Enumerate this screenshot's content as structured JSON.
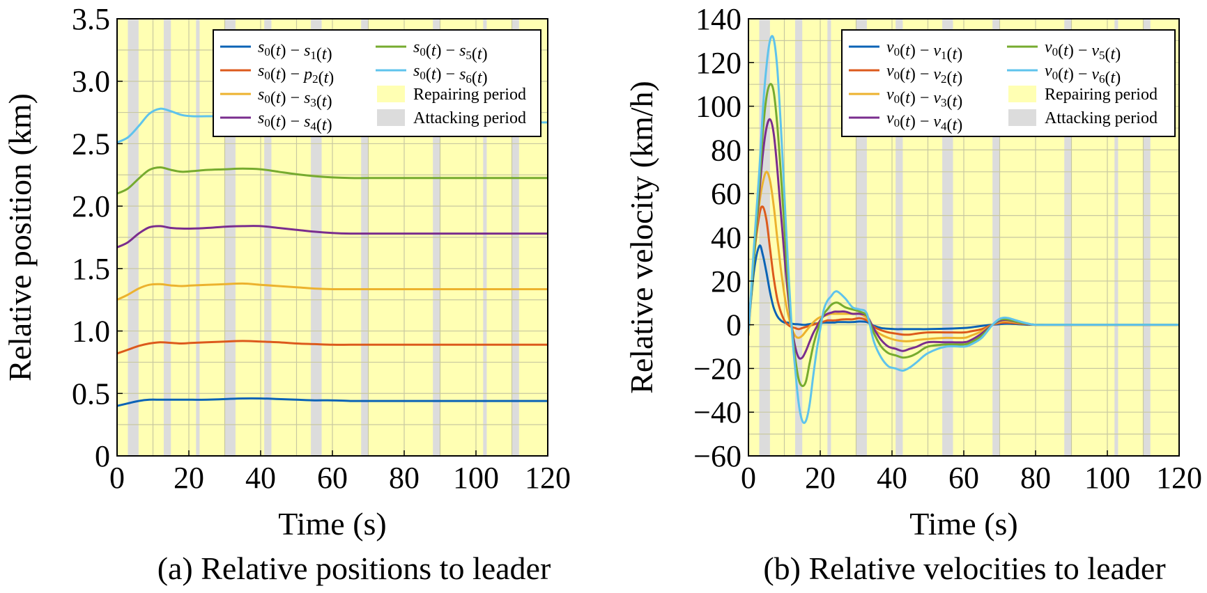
{
  "colors": {
    "repair": "#ffffb3",
    "attack": "#dcdcdc",
    "grid": "#c8c8a0",
    "s1": "#0b63b6",
    "s2": "#dc5a1c",
    "s3": "#ecb22e",
    "s4": "#7a2d8e",
    "s5": "#76ab2f",
    "s6": "#5fc3ec"
  },
  "chart_data": [
    {
      "type": "line",
      "caption": "(a) Relative positions to leader",
      "xlabel": "Time (s)",
      "ylabel": "Relative position (km)",
      "xlim": [
        0,
        120
      ],
      "ylim": [
        0,
        3.5
      ],
      "xticks": [
        0,
        20,
        40,
        60,
        80,
        100,
        120
      ],
      "yticks": [
        0,
        0.5,
        1.0,
        1.5,
        2.0,
        2.5,
        3.0,
        3.5
      ],
      "ytick_labels": [
        "0",
        "0.5",
        "1.0",
        "1.5",
        "2.0",
        "2.5",
        "3.0",
        "3.5"
      ],
      "grid": true,
      "legend_position": "top-right",
      "background": "Repairing period",
      "attack_intervals": [
        [
          3,
          6
        ],
        [
          13,
          15
        ],
        [
          22,
          23
        ],
        [
          30,
          33
        ],
        [
          41,
          43
        ],
        [
          54,
          57
        ],
        [
          68,
          70
        ],
        [
          88,
          90
        ],
        [
          102,
          103
        ],
        [
          110,
          112
        ]
      ],
      "legend": [
        {
          "key": "s1",
          "text": "s0(t) − s1(t)"
        },
        {
          "key": "s2",
          "text": "s0(t) − p2(t)"
        },
        {
          "key": "s3",
          "text": "s0(t) − s3(t)"
        },
        {
          "key": "s4",
          "text": "s0(t) − s4(t)"
        },
        {
          "key": "s5",
          "text": "s0(t) − s5(t)"
        },
        {
          "key": "s6",
          "text": "s0(t) − s6(t)"
        },
        {
          "key": "repair",
          "text": "Repairing period"
        },
        {
          "key": "attack",
          "text": "Attacking period"
        }
      ],
      "x": [
        0,
        3,
        6,
        9,
        12,
        15,
        18,
        21,
        25,
        30,
        35,
        40,
        45,
        50,
        55,
        60,
        65,
        70,
        80,
        90,
        100,
        110,
        120
      ],
      "series": [
        {
          "key": "s1",
          "name": "s0(t) − s1(t)",
          "values": [
            0.4,
            0.42,
            0.44,
            0.45,
            0.45,
            0.45,
            0.45,
            0.45,
            0.45,
            0.455,
            0.46,
            0.46,
            0.455,
            0.45,
            0.445,
            0.445,
            0.44,
            0.44,
            0.44,
            0.44,
            0.44,
            0.44,
            0.44
          ]
        },
        {
          "key": "s2",
          "name": "s0(t) − p2(t)",
          "values": [
            0.82,
            0.85,
            0.88,
            0.9,
            0.91,
            0.905,
            0.9,
            0.905,
            0.91,
            0.915,
            0.92,
            0.915,
            0.91,
            0.9,
            0.895,
            0.89,
            0.89,
            0.89,
            0.89,
            0.89,
            0.89,
            0.89,
            0.89
          ]
        },
        {
          "key": "s3",
          "name": "s0(t) − s3(t)",
          "values": [
            1.25,
            1.29,
            1.34,
            1.37,
            1.375,
            1.365,
            1.36,
            1.365,
            1.37,
            1.375,
            1.38,
            1.37,
            1.36,
            1.35,
            1.34,
            1.335,
            1.335,
            1.335,
            1.335,
            1.335,
            1.335,
            1.335,
            1.335
          ]
        },
        {
          "key": "s4",
          "name": "s0(t) − s4(t)",
          "values": [
            1.67,
            1.71,
            1.78,
            1.83,
            1.84,
            1.825,
            1.82,
            1.82,
            1.825,
            1.835,
            1.84,
            1.84,
            1.825,
            1.81,
            1.795,
            1.785,
            1.78,
            1.78,
            1.78,
            1.78,
            1.78,
            1.78,
            1.78
          ]
        },
        {
          "key": "s5",
          "name": "s0(t) − s5(t)",
          "values": [
            2.1,
            2.14,
            2.22,
            2.29,
            2.31,
            2.29,
            2.275,
            2.28,
            2.29,
            2.295,
            2.3,
            2.295,
            2.275,
            2.255,
            2.24,
            2.23,
            2.225,
            2.225,
            2.225,
            2.225,
            2.225,
            2.225,
            2.225
          ]
        },
        {
          "key": "s6",
          "name": "s0(t) − s6(t)",
          "values": [
            2.51,
            2.55,
            2.64,
            2.74,
            2.78,
            2.76,
            2.73,
            2.72,
            2.72,
            2.72,
            2.72,
            2.72,
            2.7,
            2.69,
            2.68,
            2.675,
            2.67,
            2.67,
            2.67,
            2.67,
            2.67,
            2.67,
            2.67
          ]
        }
      ]
    },
    {
      "type": "line",
      "caption": "(b) Relative velocities to leader",
      "xlabel": "Time (s)",
      "ylabel": "Relative velocity (km/h)",
      "xlim": [
        0,
        120
      ],
      "ylim": [
        -60,
        140
      ],
      "xticks": [
        0,
        20,
        40,
        60,
        80,
        100,
        120
      ],
      "yticks": [
        -60,
        -40,
        -20,
        0,
        20,
        40,
        60,
        80,
        100,
        120,
        140
      ],
      "ytick_labels": [
        "−60",
        "−40",
        "−20",
        "0",
        "20",
        "40",
        "60",
        "80",
        "100",
        "120",
        "140"
      ],
      "grid": true,
      "legend_position": "top-right",
      "background": "Repairing period",
      "attack_intervals": [
        [
          3,
          6
        ],
        [
          13,
          15
        ],
        [
          22,
          23
        ],
        [
          30,
          33
        ],
        [
          41,
          43
        ],
        [
          54,
          57
        ],
        [
          68,
          70
        ],
        [
          88,
          90
        ],
        [
          102,
          103
        ],
        [
          110,
          112
        ]
      ],
      "legend": [
        {
          "key": "s1",
          "text": "v0(t) − v1(t)"
        },
        {
          "key": "s2",
          "text": "v0(t) − v2(t)"
        },
        {
          "key": "s3",
          "text": "v0(t) − v3(t)"
        },
        {
          "key": "s4",
          "text": "v0(t) − v4(t)"
        },
        {
          "key": "s5",
          "text": "v0(t) − v5(t)"
        },
        {
          "key": "s6",
          "text": "v0(t) − v6(t)"
        },
        {
          "key": "repair",
          "text": "Repairing period"
        },
        {
          "key": "attack",
          "text": "Attacking period"
        }
      ],
      "x": [
        0,
        1.5,
        3,
        4,
        5,
        6,
        7,
        8,
        9,
        10,
        11,
        12,
        13,
        14,
        15,
        16,
        17,
        18,
        19,
        20,
        21,
        22,
        23,
        24,
        25,
        27,
        29,
        31,
        33,
        35,
        37,
        39,
        41,
        43,
        45,
        47,
        50,
        55,
        60,
        62,
        65,
        68,
        70,
        72,
        75,
        78,
        80,
        85,
        90,
        100,
        110,
        120
      ],
      "series": [
        {
          "key": "s1",
          "name": "v0(t) − v1(t)",
          "values": [
            -2,
            24,
            36,
            32,
            24,
            15,
            8,
            4,
            2,
            1,
            1,
            0.5,
            0.3,
            0.2,
            0,
            0,
            0.3,
            0.5,
            0.6,
            0.8,
            1,
            1,
            1,
            1,
            1.2,
            1.2,
            1.2,
            1.5,
            1.2,
            -0.5,
            -1.5,
            -1.8,
            -2,
            -2,
            -2,
            -2,
            -2,
            -1.8,
            -1.5,
            -1.2,
            -0.5,
            0,
            0.3,
            0.5,
            0.3,
            0,
            0,
            0,
            0,
            0,
            0,
            0
          ]
        },
        {
          "key": "s2",
          "name": "v0(t) − v2(t)",
          "values": [
            -3,
            30,
            50,
            54,
            48,
            35,
            22,
            12,
            6,
            2,
            0,
            -1,
            -1.5,
            -2,
            -1.5,
            -1,
            -0.5,
            0,
            0.5,
            1,
            1.5,
            2,
            2,
            2,
            2.2,
            2.5,
            2.5,
            3,
            2,
            -1,
            -2.5,
            -3.5,
            -4,
            -4.5,
            -4.5,
            -4,
            -3.5,
            -3.5,
            -3.5,
            -3,
            -2,
            0,
            0.8,
            1,
            0.6,
            0.2,
            0,
            0,
            0,
            0,
            0,
            0
          ]
        },
        {
          "key": "s3",
          "name": "v0(t) − v3(t)",
          "values": [
            -5,
            30,
            55,
            65,
            70,
            66,
            55,
            40,
            26,
            14,
            5,
            -1,
            -5,
            -6,
            -5,
            -3,
            -1,
            1,
            2.5,
            3.5,
            4,
            4.5,
            5,
            5,
            5,
            5,
            5,
            5,
            3,
            -2,
            -4.5,
            -6,
            -7,
            -7.5,
            -7.5,
            -7,
            -6.5,
            -6,
            -6,
            -5,
            -3,
            0,
            1.3,
            1.6,
            1,
            0.3,
            0,
            0,
            0,
            0,
            0,
            0
          ]
        },
        {
          "key": "s4",
          "name": "v0(t) − v4(t)",
          "values": [
            -3,
            30,
            60,
            78,
            90,
            94,
            88,
            72,
            52,
            32,
            14,
            0,
            -10,
            -15,
            -15,
            -12,
            -8,
            -4,
            -1,
            2,
            4,
            5,
            5.5,
            6,
            6,
            6,
            5,
            5,
            4,
            -2,
            -7,
            -10,
            -11,
            -12,
            -11,
            -10,
            -8,
            -8,
            -8,
            -7,
            -4,
            0,
            1.8,
            2.2,
            1.2,
            0.3,
            0,
            0,
            0,
            0,
            0,
            0
          ]
        },
        {
          "key": "s5",
          "name": "v0(t) − v5(t)",
          "values": [
            -2,
            30,
            64,
            88,
            104,
            110,
            107,
            92,
            70,
            45,
            20,
            0,
            -15,
            -25,
            -28,
            -26,
            -18,
            -10,
            -4,
            1,
            5,
            7,
            9,
            10,
            10,
            8,
            7,
            6,
            4,
            -4,
            -10,
            -13,
            -14,
            -15,
            -14.5,
            -13,
            -10,
            -9,
            -9,
            -8,
            -5,
            0,
            2.3,
            2.5,
            1.3,
            0.4,
            0,
            0,
            0,
            0,
            0,
            0
          ]
        },
        {
          "key": "s6",
          "name": "v0(t) − v6(t)",
          "values": [
            -4,
            35,
            70,
            98,
            118,
            130,
            131,
            118,
            92,
            60,
            28,
            0,
            -20,
            -36,
            -44,
            -44,
            -37,
            -24,
            -12,
            -2,
            7,
            11,
            13,
            15,
            15,
            12,
            8,
            7,
            5,
            -8,
            -15,
            -19,
            -20,
            -21,
            -19.5,
            -17,
            -13,
            -10,
            -10,
            -9,
            -6,
            0,
            2.7,
            3.2,
            1.8,
            0.5,
            0,
            0,
            0,
            0,
            0,
            0
          ]
        }
      ]
    }
  ]
}
